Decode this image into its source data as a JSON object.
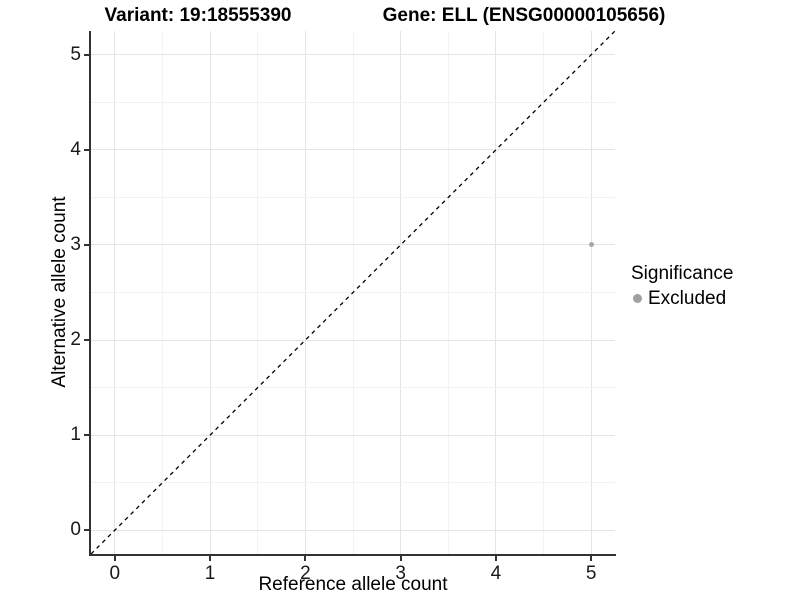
{
  "chart_data": {
    "type": "scatter",
    "title_left": "Variant: 19:18555390",
    "title_right": "Gene: ELL (ENSG00000105656)",
    "xlabel": "Reference allele count",
    "ylabel": "Alternative allele count",
    "xlim": [
      -0.25,
      5.25
    ],
    "ylim": [
      -0.25,
      5.25
    ],
    "x_ticks": [
      0,
      1,
      2,
      3,
      4,
      5
    ],
    "y_ticks": [
      0,
      1,
      2,
      3,
      4,
      5
    ],
    "minor_step": 0.5,
    "grid": true,
    "points": [
      {
        "x": 5,
        "y": 3,
        "series": "Excluded",
        "color": "#a6a6a6",
        "size": 5
      }
    ],
    "reference_line": {
      "slope": 1,
      "intercept": 0,
      "style": "dashed",
      "color": "#000000"
    },
    "legend": {
      "position": "right",
      "title": "Significance",
      "items": [
        {
          "label": "Excluded",
          "color": "#a0a0a0"
        }
      ]
    }
  },
  "colors": {
    "grid_major": "#e4e4e4",
    "grid_minor": "#f2f2f2",
    "axis_line": "#333333",
    "background": "#ffffff"
  }
}
